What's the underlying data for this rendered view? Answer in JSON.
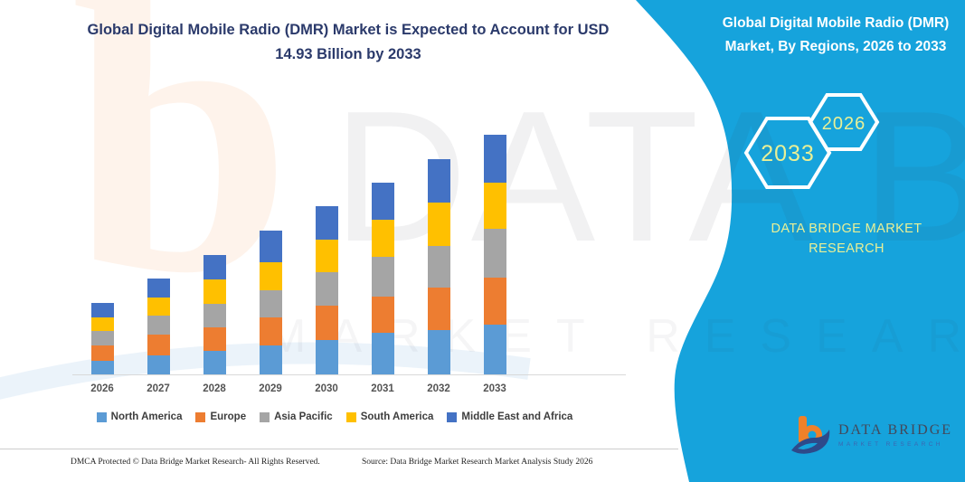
{
  "page": {
    "main_title": "Global Digital Mobile Radio (DMR) Market is Expected to Account for USD 14.93 Billion by 2033",
    "footer_left": "DMCA Protected © Data Bridge Market Research-  All Rights Reserved.",
    "footer_source": "Source: Data Bridge Market Research  Market Analysis Study 2026"
  },
  "panel": {
    "title": "Global Digital Mobile Radio (DMR) Market, By Regions, 2026 to 2033",
    "background_color": "#16a3dc",
    "accent_text_color": "#e9f096",
    "hexagon_back_label": "2033",
    "hexagon_front_label": "2026",
    "brand_text": "DATA BRIDGE MARKET RESEARCH",
    "logo_title": "DATA BRIDGE",
    "logo_subtitle": "MARKET RESEARCH"
  },
  "watermark": {
    "row1": "DATA BRIDGE",
    "row2": "MARKET RESEARCH",
    "letter": "b"
  },
  "chart_data": {
    "type": "bar",
    "stacked": true,
    "title": "Global Digital Mobile Radio (DMR) Market is Expected to Account for USD 14.93 Billion by 2033",
    "categories": [
      "2026",
      "2027",
      "2028",
      "2029",
      "2030",
      "2031",
      "2032",
      "2033"
    ],
    "series": [
      {
        "name": "North America",
        "color": "#5B9BD5",
        "values": [
          0.92,
          1.24,
          1.5,
          1.84,
          2.19,
          2.62,
          2.81,
          3.17
        ]
      },
      {
        "name": "Europe",
        "color": "#ED7D31",
        "values": [
          0.94,
          1.28,
          1.5,
          1.78,
          2.12,
          2.25,
          2.62,
          2.9
        ]
      },
      {
        "name": "Asia Pacific",
        "color": "#A5A5A5",
        "values": [
          0.9,
          1.17,
          1.42,
          1.66,
          2.1,
          2.49,
          2.62,
          3.0
        ]
      },
      {
        "name": "South America",
        "color": "#FFC000",
        "values": [
          0.83,
          1.12,
          1.53,
          1.74,
          2.02,
          2.32,
          2.69,
          2.87
        ]
      },
      {
        "name": "Middle East and Africa",
        "color": "#4472C4",
        "values": [
          0.92,
          1.19,
          1.54,
          1.96,
          2.04,
          2.28,
          2.7,
          2.99
        ]
      }
    ],
    "totals_estimated": [
      4.51,
      6.0,
      7.49,
      8.98,
      10.47,
      11.96,
      13.44,
      14.93
    ],
    "ylim": [
      0,
      14.93
    ],
    "y_axis_shown": false,
    "gridlines": false,
    "legend_position": "bottom"
  }
}
